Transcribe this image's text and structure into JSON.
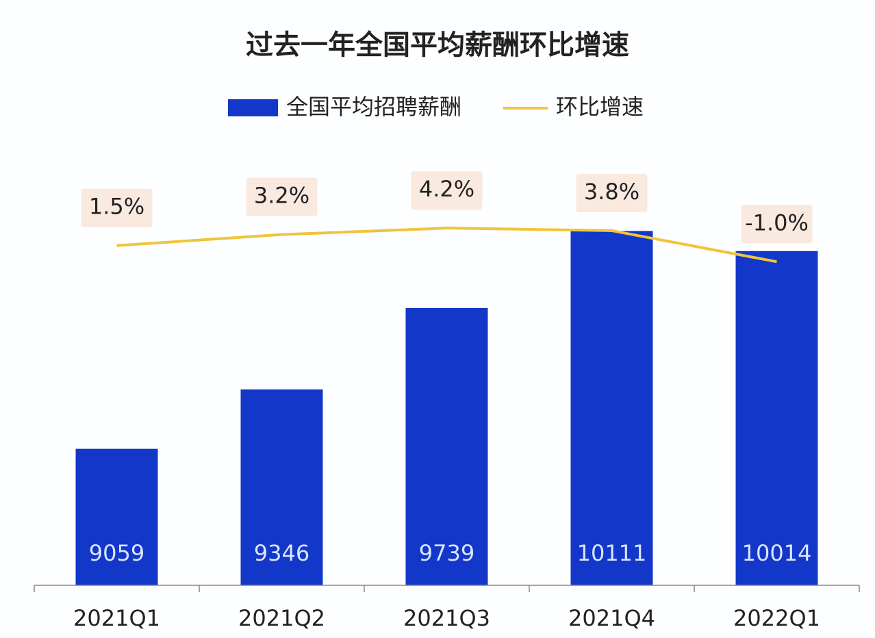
{
  "chart_data": {
    "type": "bar-line",
    "title": "过去一年全国平均薪酬环比增速",
    "categories": [
      "2021Q1",
      "2021Q2",
      "2021Q3",
      "2021Q4",
      "2022Q1"
    ],
    "series": [
      {
        "name": "全国平均招聘薪酬",
        "type": "bar",
        "color": "#1237c9",
        "values": [
          9059,
          9346,
          9739,
          10111,
          10014
        ]
      },
      {
        "name": "环比增速",
        "type": "line",
        "axis": "y2",
        "color": "#f0c43a",
        "values": [
          1.5,
          3.2,
          4.2,
          3.8,
          -1.0
        ],
        "value_labels": [
          "1.5%",
          "3.2%",
          "4.2%",
          "3.8%",
          "-1.0%"
        ]
      }
    ],
    "ylim": [
      8400,
      10400
    ],
    "y2lim": [
      -51,
      13
    ],
    "grid": false,
    "legend": "top"
  }
}
